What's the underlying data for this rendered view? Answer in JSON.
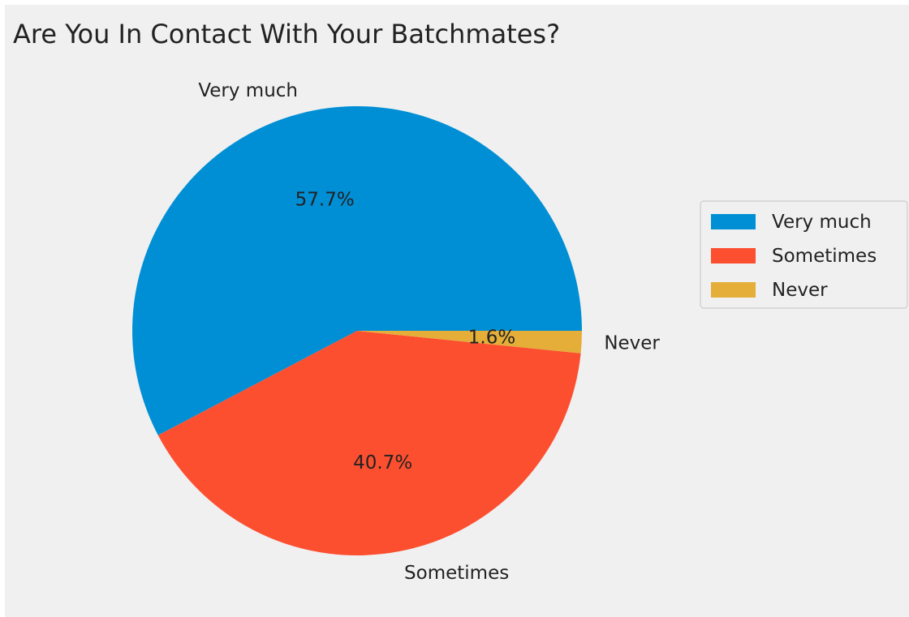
{
  "chart_data": {
    "type": "pie",
    "title": "Are You In Contact With Your Batchmates?",
    "categories": [
      "Very much",
      "Sometimes",
      "Never"
    ],
    "values": [
      57.7,
      40.7,
      1.6
    ],
    "value_labels": [
      "57.7%",
      "40.7%",
      "1.6%"
    ],
    "colors": [
      "#008fd5",
      "#fc4f30",
      "#e5ae38"
    ],
    "start_angle_deg": 0,
    "direction": "counterclockwise",
    "legend": {
      "placement": "right",
      "entries": [
        "Very much",
        "Sometimes",
        "Never"
      ]
    },
    "background": "#f0f0f0"
  }
}
